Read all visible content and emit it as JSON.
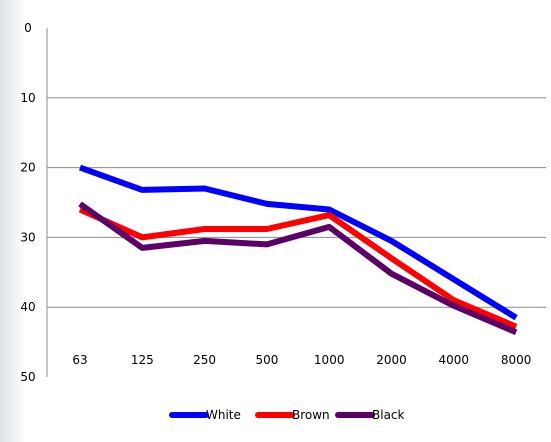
{
  "chart_data": {
    "type": "line",
    "title": "",
    "xlabel": "",
    "ylabel": "",
    "categories": [
      "63",
      "125",
      "250",
      "500",
      "1000",
      "2000",
      "4000",
      "8000"
    ],
    "y_ticks": [
      "0",
      "10",
      "20",
      "30",
      "40",
      "50"
    ],
    "ylim": [
      0,
      50
    ],
    "y_inverted": true,
    "grid": true,
    "legend": "bottom",
    "series": [
      {
        "name": "White",
        "color": "#0000ff",
        "values": [
          20,
          23.2,
          23,
          25.2,
          26,
          30.5,
          36,
          41.5
        ]
      },
      {
        "name": "Brown",
        "color": "#ff0000",
        "values": [
          26,
          30,
          28.8,
          28.8,
          26.8,
          33,
          39,
          42.8
        ]
      },
      {
        "name": "Black",
        "color": "#5b0066",
        "values": [
          25.2,
          31.5,
          30.5,
          31,
          28.5,
          35.2,
          39.8,
          43.6
        ]
      }
    ]
  }
}
